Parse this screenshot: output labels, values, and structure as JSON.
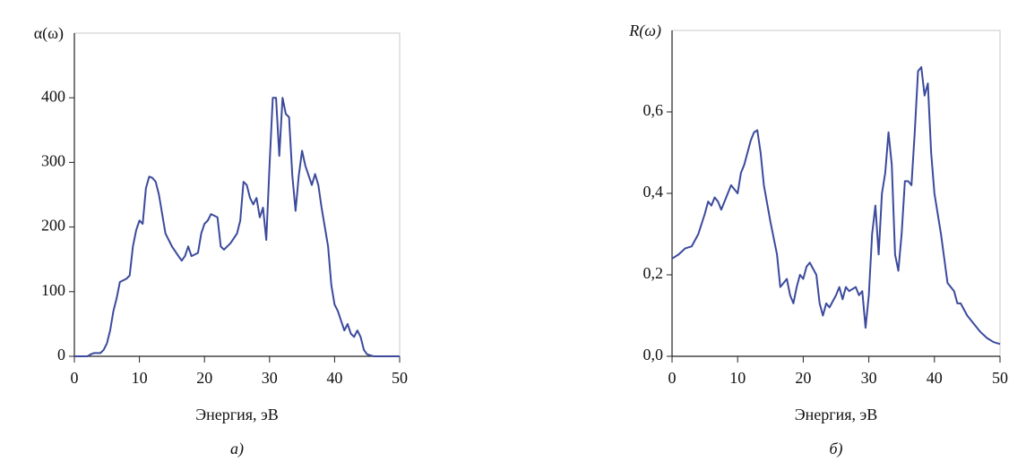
{
  "chart_data": [
    {
      "type": "line",
      "ylabel": "α(ω)",
      "xlabel": "Энергия, эВ",
      "caption": "а)",
      "color": "#3b4a9c",
      "xlim": [
        0,
        50
      ],
      "xticks": [
        0,
        10,
        20,
        30,
        40,
        50
      ],
      "ylim": [
        0,
        500
      ],
      "yticks": [
        0,
        100,
        200,
        300,
        400
      ],
      "x": [
        0,
        1,
        2,
        2.5,
        3,
        4,
        4.5,
        5,
        5.5,
        6,
        6.5,
        7,
        8,
        8.5,
        9,
        9.5,
        10,
        10.5,
        11,
        11.5,
        12,
        12.5,
        13,
        13.5,
        14,
        15,
        16,
        16.5,
        17,
        17.5,
        18,
        19,
        19.5,
        20,
        20.5,
        21,
        22,
        22.5,
        23,
        24,
        25,
        25.5,
        26,
        26.5,
        27,
        27.5,
        28,
        28.5,
        29,
        29.5,
        30,
        30.5,
        31,
        31.5,
        32,
        32.5,
        33,
        33.5,
        34,
        34.5,
        35,
        35.5,
        36,
        36.5,
        37,
        37.5,
        38,
        39,
        39.5,
        40,
        40.5,
        41,
        41.5,
        42,
        42.5,
        43,
        43.5,
        44,
        44.5,
        45,
        46,
        50
      ],
      "values": [
        0,
        0,
        0,
        3,
        5,
        5,
        10,
        20,
        40,
        70,
        90,
        115,
        120,
        125,
        170,
        195,
        210,
        205,
        260,
        278,
        276,
        270,
        250,
        220,
        190,
        170,
        155,
        148,
        155,
        170,
        155,
        160,
        190,
        205,
        210,
        220,
        215,
        170,
        165,
        175,
        190,
        210,
        270,
        265,
        245,
        235,
        245,
        215,
        230,
        180,
        295,
        400,
        400,
        310,
        400,
        375,
        370,
        280,
        225,
        280,
        318,
        295,
        280,
        265,
        282,
        265,
        230,
        170,
        110,
        80,
        70,
        55,
        40,
        50,
        35,
        30,
        40,
        30,
        10,
        3,
        0,
        0
      ]
    },
    {
      "type": "line",
      "ylabel": "R(ω)",
      "xlabel": "Энергия, эВ",
      "caption": "б)",
      "color": "#3b4a9c",
      "xlim": [
        0,
        50
      ],
      "xticks": [
        0,
        10,
        20,
        30,
        40,
        50
      ],
      "ylim": [
        0,
        0.8
      ],
      "yticks": [
        {
          "value": 0,
          "label": "0,0"
        },
        {
          "value": 0.2,
          "label": "0,2"
        },
        {
          "value": 0.4,
          "label": "0,4"
        },
        {
          "value": 0.6,
          "label": "0,6"
        }
      ],
      "x": [
        0,
        1,
        2,
        3,
        4,
        5,
        5.5,
        6,
        6.5,
        7,
        7.5,
        8,
        9,
        10,
        10.5,
        11,
        11.5,
        12,
        12.5,
        13,
        13.5,
        14,
        15,
        16,
        16.5,
        17,
        17.5,
        18,
        18.5,
        19,
        19.5,
        20,
        20.5,
        21,
        22,
        22.5,
        23,
        23.5,
        24,
        25,
        25.5,
        26,
        26.5,
        27,
        28,
        28.5,
        29,
        29.5,
        30,
        30.5,
        31,
        31.5,
        32,
        32.5,
        33,
        33.5,
        34,
        34.5,
        35,
        35.5,
        36,
        36.5,
        37,
        37.5,
        38,
        38.5,
        39,
        39.5,
        40,
        41,
        42,
        43,
        43.5,
        44,
        45,
        46,
        47,
        48,
        49,
        50
      ],
      "values": [
        0.24,
        0.25,
        0.265,
        0.27,
        0.3,
        0.35,
        0.38,
        0.37,
        0.39,
        0.38,
        0.36,
        0.38,
        0.42,
        0.4,
        0.45,
        0.47,
        0.5,
        0.53,
        0.55,
        0.555,
        0.5,
        0.42,
        0.33,
        0.25,
        0.17,
        0.18,
        0.19,
        0.15,
        0.13,
        0.17,
        0.2,
        0.19,
        0.22,
        0.23,
        0.2,
        0.13,
        0.1,
        0.13,
        0.12,
        0.15,
        0.17,
        0.14,
        0.17,
        0.16,
        0.17,
        0.15,
        0.16,
        0.07,
        0.15,
        0.3,
        0.37,
        0.25,
        0.4,
        0.45,
        0.55,
        0.47,
        0.25,
        0.21,
        0.3,
        0.43,
        0.43,
        0.42,
        0.55,
        0.7,
        0.71,
        0.64,
        0.67,
        0.5,
        0.4,
        0.3,
        0.18,
        0.16,
        0.13,
        0.13,
        0.1,
        0.08,
        0.06,
        0.045,
        0.035,
        0.03
      ]
    }
  ]
}
